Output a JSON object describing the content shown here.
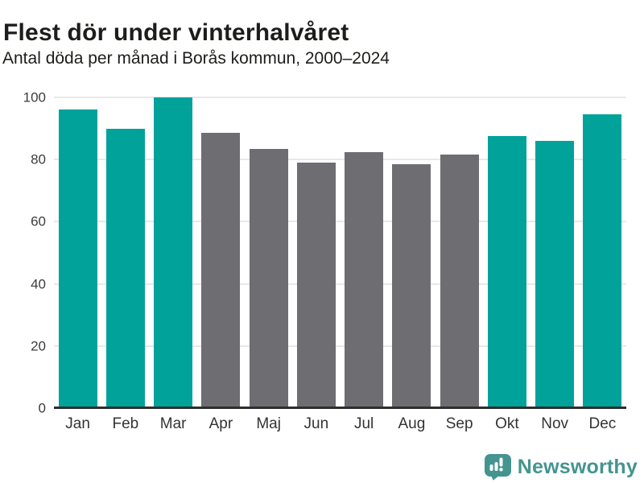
{
  "header": {
    "title": "Flest dör under vinterhalvåret",
    "subtitle": "Antal döda per månad i Borås kommun, 2000–2024"
  },
  "chart_data": {
    "type": "bar",
    "title": "Flest dör under vinterhalvåret",
    "subtitle": "Antal döda per månad i Borås kommun, 2000–2024",
    "categories": [
      "Jan",
      "Feb",
      "Mar",
      "Apr",
      "Maj",
      "Jun",
      "Jul",
      "Aug",
      "Sep",
      "Okt",
      "Nov",
      "Dec"
    ],
    "values": [
      96,
      90,
      100,
      88.5,
      83.5,
      79,
      82.5,
      78.5,
      81.5,
      87.5,
      86,
      94.5
    ],
    "bar_colors": [
      "#00a29a",
      "#00a29a",
      "#00a29a",
      "#6d6d72",
      "#6d6d72",
      "#6d6d72",
      "#6d6d72",
      "#6d6d72",
      "#6d6d72",
      "#00a29a",
      "#00a29a",
      "#00a29a"
    ],
    "palette": {
      "winter_teal": "#00a29a",
      "summer_gray": "#6d6d72",
      "gridline": "#e8e8e8",
      "axis_line": "#2e2e2e"
    },
    "xlabel": "",
    "ylabel": "",
    "ylim": [
      0,
      100
    ],
    "yticks": [
      0,
      20,
      40,
      60,
      80,
      100
    ],
    "grid": "horizontal",
    "legend": "none"
  },
  "footer": {
    "brand": "Newsworthy",
    "brand_color": "#44948f",
    "logo_icon": "newsworthy-speech-bubble-chart-icon"
  }
}
